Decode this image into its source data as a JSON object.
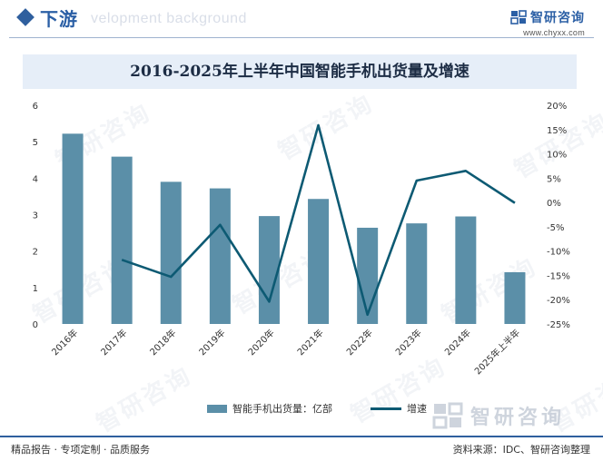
{
  "header": {
    "title": "下游",
    "background_text": "velopment background",
    "brand_name": "智研咨询",
    "brand_url": "www.chyxx.com"
  },
  "watermark_text": "智研咨询",
  "chart_data": {
    "type": "bar",
    "title": "2016-2025年上半年中国智能手机出货量及增速",
    "categories": [
      "2016年",
      "2017年",
      "2018年",
      "2019年",
      "2020年",
      "2021年",
      "2022年",
      "2023年",
      "2024年",
      "2025年上半年"
    ],
    "series": [
      {
        "name": "智能手机出货量：亿部",
        "type": "bar",
        "axis": "left",
        "color": "#5b8fa8",
        "values": [
          5.22,
          4.59,
          3.9,
          3.72,
          2.96,
          3.43,
          2.64,
          2.76,
          2.95,
          1.42
        ]
      },
      {
        "name": "增速",
        "type": "line",
        "axis": "right",
        "color": "#0d5a73",
        "values": [
          null,
          -11.8,
          -15.3,
          -4.6,
          -20.4,
          15.9,
          -23.1,
          4.5,
          6.5,
          -0.1
        ]
      }
    ],
    "yleft": {
      "min": 0,
      "max": 6,
      "ticks": [
        "0",
        "1",
        "2",
        "3",
        "4",
        "5",
        "6"
      ]
    },
    "yright": {
      "min": -25,
      "max": 20,
      "ticks": [
        "-25%",
        "-20%",
        "-15%",
        "-10%",
        "-5%",
        "0%",
        "5%",
        "10%",
        "15%",
        "20%"
      ]
    },
    "grid": false,
    "legend_position": "bottom"
  },
  "footer": {
    "left": "精品报告 · 专项定制 · 品质服务",
    "right": "资料来源：IDC、智研咨询整理"
  }
}
